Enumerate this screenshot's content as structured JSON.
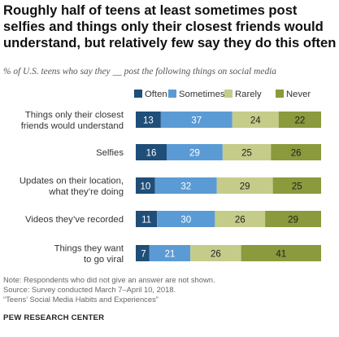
{
  "title": "Roughly half of teens at least sometimes post selfies and things only their closest friends would understand, but relatively few say they do this often",
  "subtitle": "% of U.S. teens who say they __ post the following things on social media",
  "chart_data": {
    "type": "bar",
    "orientation": "horizontal",
    "stacked": true,
    "categories": [
      "Things only their closest friends would understand",
      "Selfies",
      "Updates on their location, what they’re doing",
      "Videos they’ve recorded",
      "Things they want to go viral"
    ],
    "category_lines": [
      [
        "Things only their closest",
        "friends would understand"
      ],
      [
        "Selfies"
      ],
      [
        "Updates on their location,",
        "what they’re doing"
      ],
      [
        "Videos they’ve recorded"
      ],
      [
        "Things they want",
        "to go viral"
      ]
    ],
    "series": [
      {
        "name": "Often",
        "color": "#1f4e79",
        "values": [
          13,
          16,
          10,
          11,
          7
        ]
      },
      {
        "name": "Sometimes",
        "color": "#5b9bd5",
        "values": [
          37,
          29,
          32,
          30,
          21
        ]
      },
      {
        "name": "Rarely",
        "color": "#c5cc8a",
        "values": [
          24,
          25,
          29,
          26,
          26
        ]
      },
      {
        "name": "Never",
        "color": "#8a9a3c",
        "values": [
          22,
          26,
          25,
          29,
          41
        ]
      }
    ],
    "legend_position": "top",
    "grid": false
  },
  "notes": [
    "Note: Respondents who did not give an answer are not shown.",
    "Source: Survey conducted March 7–April 10, 2018.",
    "“Teens’ Social Media Habits and Experiences”"
  ],
  "organization": "PEW RESEARCH CENTER"
}
